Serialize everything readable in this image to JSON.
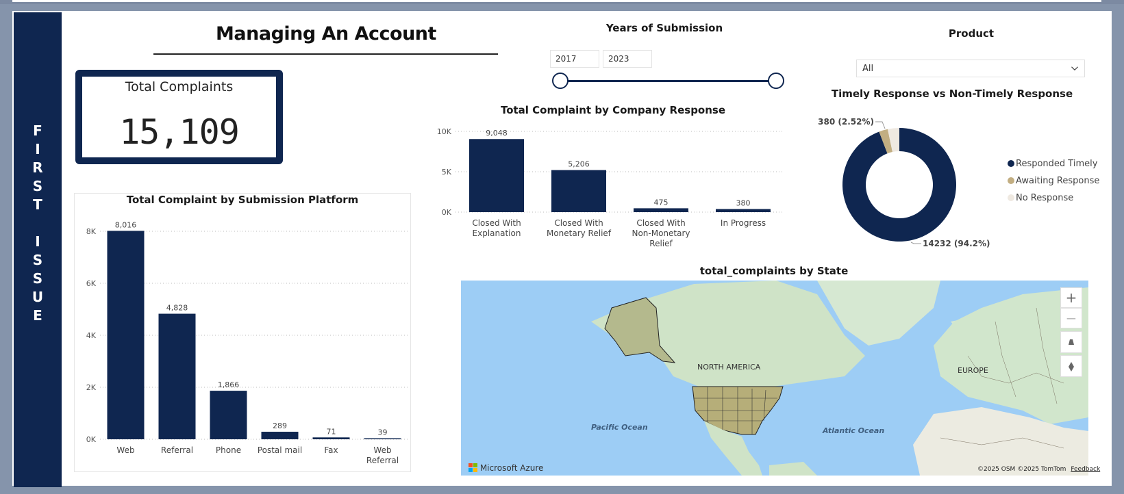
{
  "sidebar": {
    "letters": [
      "F",
      "I",
      "R",
      "S",
      "T",
      "",
      "I",
      "S",
      "S",
      "U",
      "E"
    ]
  },
  "page": {
    "title": "Managing An Account"
  },
  "kpi": {
    "label": "Total Complaints",
    "value": "15,109"
  },
  "years_slicer": {
    "title": "Years of Submission",
    "start": "2017",
    "end": "2023"
  },
  "product_slicer": {
    "title": "Product",
    "selected": "All"
  },
  "platform_chart": {
    "title": "Total Complaint by Submission Platform",
    "yticks": [
      "8K",
      "6K",
      "4K",
      "2K",
      "0K"
    ]
  },
  "response_chart": {
    "title": "Total Complaint by Company Response",
    "yticks": [
      "10K",
      "5K",
      "0K"
    ]
  },
  "timely_chart": {
    "title": "Timely Response vs Non-Timely Response",
    "label_small": "380 (2.52%)",
    "label_large": "14232 (94.2%)",
    "legend": [
      {
        "label": "Responded Timely",
        "color": "#0f2650"
      },
      {
        "label": "Awaiting Response",
        "color": "#c2ae82"
      },
      {
        "label": "No Response",
        "color": "#efe9e1"
      }
    ]
  },
  "map_chart": {
    "title": "total_complaints by State",
    "labels": {
      "north_america": "NORTH AMERICA",
      "europe": "EUROPE",
      "pacific": "Pacific Ocean",
      "atlantic": "Atlantic Ocean"
    },
    "brand": "Microsoft Azure",
    "copyright": "©2025 OSM  ©2025 TomTom",
    "feedback": "Feedback",
    "controls": [
      "+",
      "−"
    ]
  },
  "chart_data": [
    {
      "type": "bar",
      "title": "Total Complaint by Submission Platform",
      "categories": [
        "Web",
        "Referral",
        "Phone",
        "Postal mail",
        "Fax",
        "Web Referral"
      ],
      "values": [
        8016,
        4828,
        1866,
        289,
        71,
        39
      ],
      "value_labels": [
        "8,016",
        "4,828",
        "1,866",
        "289",
        "71",
        "39"
      ],
      "ylim": [
        0,
        8000
      ],
      "color": "#0f2650",
      "grid": true
    },
    {
      "type": "bar",
      "title": "Total Complaint by Company Response",
      "categories": [
        "Closed With Explanation",
        "Closed With Monetary Relief",
        "Closed With Non-Monetary Relief",
        "In Progress"
      ],
      "values": [
        9048,
        5206,
        475,
        380
      ],
      "value_labels": [
        "9,048",
        "5,206",
        "475",
        "380"
      ],
      "ylim": [
        0,
        10000
      ],
      "color": "#0f2650",
      "grid": true
    },
    {
      "type": "pie",
      "title": "Timely Response vs Non-Timely Response",
      "donut": true,
      "labels": [
        "Responded Timely",
        "Awaiting Response",
        "No Response"
      ],
      "values": [
        14232,
        380,
        497
      ],
      "colors": [
        "#0f2650",
        "#c2ae82",
        "#efe9e1"
      ],
      "legend": "right"
    }
  ]
}
